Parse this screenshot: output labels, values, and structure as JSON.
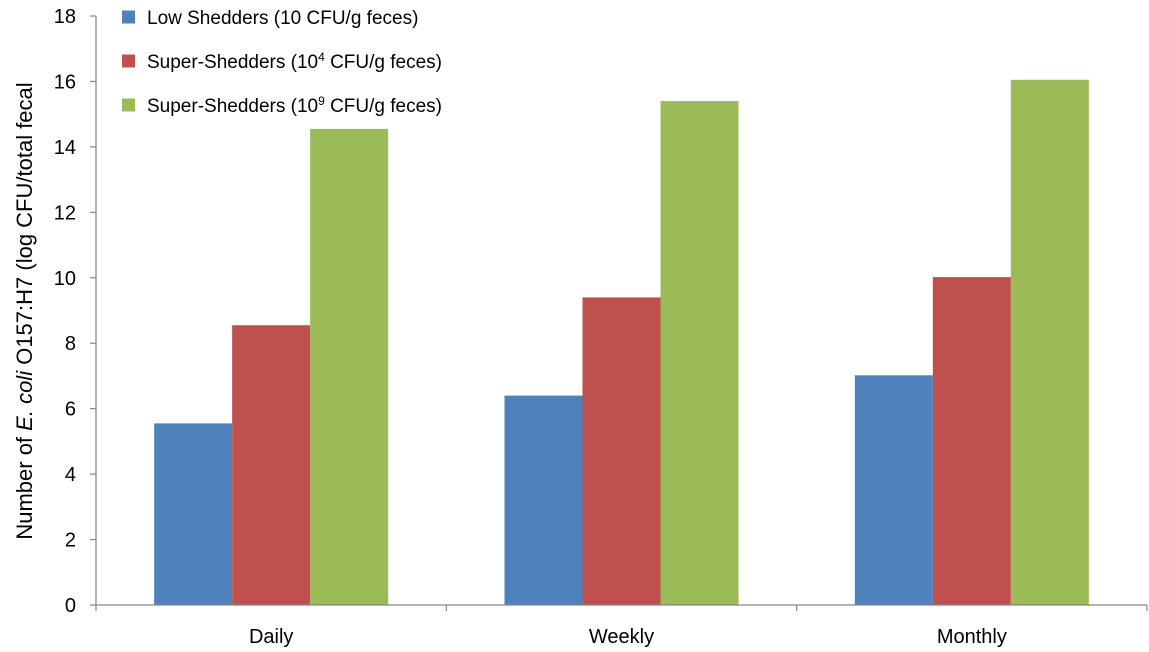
{
  "chart_data": {
    "type": "bar",
    "title": "",
    "xlabel": "",
    "ylabel_parts": [
      "Number of ",
      "E. coli",
      " O157:H7 (log CFU/total fecal"
    ],
    "categories": [
      "Daily",
      "Weekly",
      "Monthly"
    ],
    "ylim": [
      0,
      18
    ],
    "yticks": [
      "0",
      "2",
      "4",
      "6",
      "8",
      "10",
      "12",
      "14",
      "16",
      "18"
    ],
    "grid": false,
    "legend_position": "top-left",
    "series": [
      {
        "name_parts": [
          "Low Shedders (10 CFU/g feces)"
        ],
        "color": "#4F81BD",
        "values": [
          5.55,
          6.4,
          7.02
        ]
      },
      {
        "name_parts": [
          "Super-Shedders (10",
          "4",
          " CFU/g feces)"
        ],
        "color": "#C0504D",
        "values": [
          8.55,
          9.4,
          10.02
        ]
      },
      {
        "name_parts": [
          "Super-Shedders (10",
          "9",
          " CFU/g feces)"
        ],
        "color": "#9BBB59",
        "values": [
          14.55,
          15.4,
          16.05
        ]
      }
    ]
  }
}
